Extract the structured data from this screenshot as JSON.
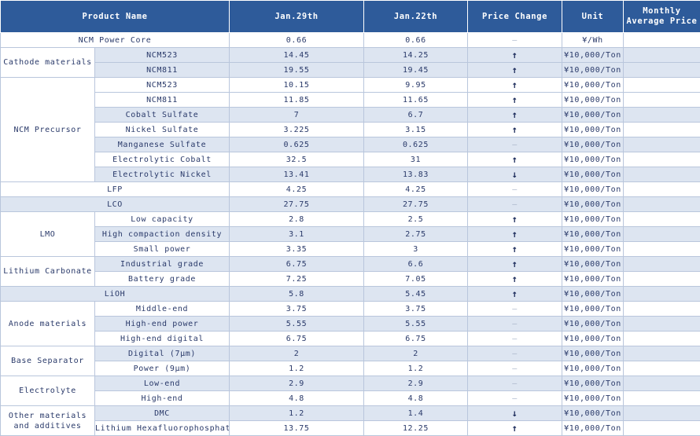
{
  "headers": [
    "Product Name",
    "Jan.29th",
    "Jan.22th",
    "Price Change",
    "Unit",
    "Monthly Average Price"
  ],
  "rows": [
    {
      "group": "",
      "name": "NCM Power Core",
      "jan29": "0.66",
      "jan22": "0.66",
      "change": "–",
      "change_type": "same",
      "unit": "¥/Wh",
      "avg": ""
    },
    {
      "group": "Cathode materials",
      "name": "NCM523",
      "jan29": "14.45",
      "jan22": "14.25",
      "change": "↑",
      "change_type": "up",
      "unit": "¥10,000/Ton",
      "avg": ""
    },
    {
      "group": "",
      "name": "NCM811",
      "jan29": "19.55",
      "jan22": "19.45",
      "change": "↑",
      "change_type": "up",
      "unit": "¥10,000/Ton",
      "avg": ""
    },
    {
      "group": "NCM Precursor",
      "name": "NCM523",
      "jan29": "10.15",
      "jan22": "9.95",
      "change": "↑",
      "change_type": "up",
      "unit": "¥10,000/Ton",
      "avg": ""
    },
    {
      "group": "",
      "name": "NCM811",
      "jan29": "11.85",
      "jan22": "11.65",
      "change": "↑",
      "change_type": "up",
      "unit": "¥10,000/Ton",
      "avg": ""
    },
    {
      "group": "",
      "name": "Cobalt Sulfate",
      "jan29": "7",
      "jan22": "6.7",
      "change": "↑",
      "change_type": "up",
      "unit": "¥10,000/Ton",
      "avg": ""
    },
    {
      "group": "",
      "name": "Nickel Sulfate",
      "jan29": "3.225",
      "jan22": "3.15",
      "change": "↑",
      "change_type": "up",
      "unit": "¥10,000/Ton",
      "avg": ""
    },
    {
      "group": "",
      "name": "Manganese Sulfate",
      "jan29": "0.625",
      "jan22": "0.625",
      "change": "–",
      "change_type": "same",
      "unit": "¥10,000/Ton",
      "avg": ""
    },
    {
      "group": "",
      "name": "Electrolytic Cobalt",
      "jan29": "32.5",
      "jan22": "31",
      "change": "↑",
      "change_type": "up",
      "unit": "¥10,000/Ton",
      "avg": ""
    },
    {
      "group": "",
      "name": "Electrolytic Nickel",
      "jan29": "13.41",
      "jan22": "13.83",
      "change": "↓",
      "change_type": "down",
      "unit": "¥10,000/Ton",
      "avg": ""
    },
    {
      "group": "",
      "name": "LFP",
      "jan29": "4.25",
      "jan22": "4.25",
      "change": "–",
      "change_type": "same",
      "unit": "¥10,000/Ton",
      "avg": ""
    },
    {
      "group": "",
      "name": "LCO",
      "jan29": "27.75",
      "jan22": "27.75",
      "change": "–",
      "change_type": "same",
      "unit": "¥10,000/Ton",
      "avg": ""
    },
    {
      "group": "LMO",
      "name": "Low capacity",
      "jan29": "2.8",
      "jan22": "2.5",
      "change": "↑",
      "change_type": "up",
      "unit": "¥10,000/Ton",
      "avg": ""
    },
    {
      "group": "",
      "name": "High compaction density",
      "jan29": "3.1",
      "jan22": "2.75",
      "change": "↑",
      "change_type": "up",
      "unit": "¥10,000/Ton",
      "avg": ""
    },
    {
      "group": "",
      "name": "Small power",
      "jan29": "3.35",
      "jan22": "3",
      "change": "↑",
      "change_type": "up",
      "unit": "¥10,000/Ton",
      "avg": ""
    },
    {
      "group": "Lithium Carbonate",
      "name": "Industrial grade",
      "jan29": "6.75",
      "jan22": "6.6",
      "change": "↑",
      "change_type": "up",
      "unit": "¥10,000/Ton",
      "avg": ""
    },
    {
      "group": "",
      "name": "Battery grade",
      "jan29": "7.25",
      "jan22": "7.05",
      "change": "↑",
      "change_type": "up",
      "unit": "¥10,000/Ton",
      "avg": ""
    },
    {
      "group": "",
      "name": "LiOH",
      "jan29": "5.8",
      "jan22": "5.45",
      "change": "↑",
      "change_type": "up",
      "unit": "¥10,000/Ton",
      "avg": ""
    },
    {
      "group": "Anode materials",
      "name": "Middle-end",
      "jan29": "3.75",
      "jan22": "3.75",
      "change": "–",
      "change_type": "same",
      "unit": "¥10,000/Ton",
      "avg": ""
    },
    {
      "group": "",
      "name": "High-end power",
      "jan29": "5.55",
      "jan22": "5.55",
      "change": "–",
      "change_type": "same",
      "unit": "¥10,000/Ton",
      "avg": ""
    },
    {
      "group": "",
      "name": "High-end digital",
      "jan29": "6.75",
      "jan22": "6.75",
      "change": "–",
      "change_type": "same",
      "unit": "¥10,000/Ton",
      "avg": ""
    },
    {
      "group": "Base Separator",
      "name": "Digital (7μm)",
      "jan29": "2",
      "jan22": "2",
      "change": "–",
      "change_type": "same",
      "unit": "¥10,000/Ton",
      "avg": ""
    },
    {
      "group": "",
      "name": "Power (9μm)",
      "jan29": "1.2",
      "jan22": "1.2",
      "change": "–",
      "change_type": "same",
      "unit": "¥10,000/Ton",
      "avg": ""
    },
    {
      "group": "Electrolyte",
      "name": "Low-end",
      "jan29": "2.9",
      "jan22": "2.9",
      "change": "–",
      "change_type": "same",
      "unit": "¥10,000/Ton",
      "avg": ""
    },
    {
      "group": "",
      "name": "High-end",
      "jan29": "4.8",
      "jan22": "4.8",
      "change": "–",
      "change_type": "same",
      "unit": "¥10,000/Ton",
      "avg": ""
    },
    {
      "group": "Other materials and additives",
      "name": "DMC",
      "jan29": "1.2",
      "jan22": "1.4",
      "change": "↓",
      "change_type": "down",
      "unit": "¥10,000/Ton",
      "avg": ""
    },
    {
      "group": "",
      "name": "Lithium Hexafluorophosphate",
      "jan29": "13.75",
      "jan22": "12.25",
      "change": "↑",
      "change_type": "up",
      "unit": "¥10,000/Ton",
      "avg": ""
    }
  ]
}
